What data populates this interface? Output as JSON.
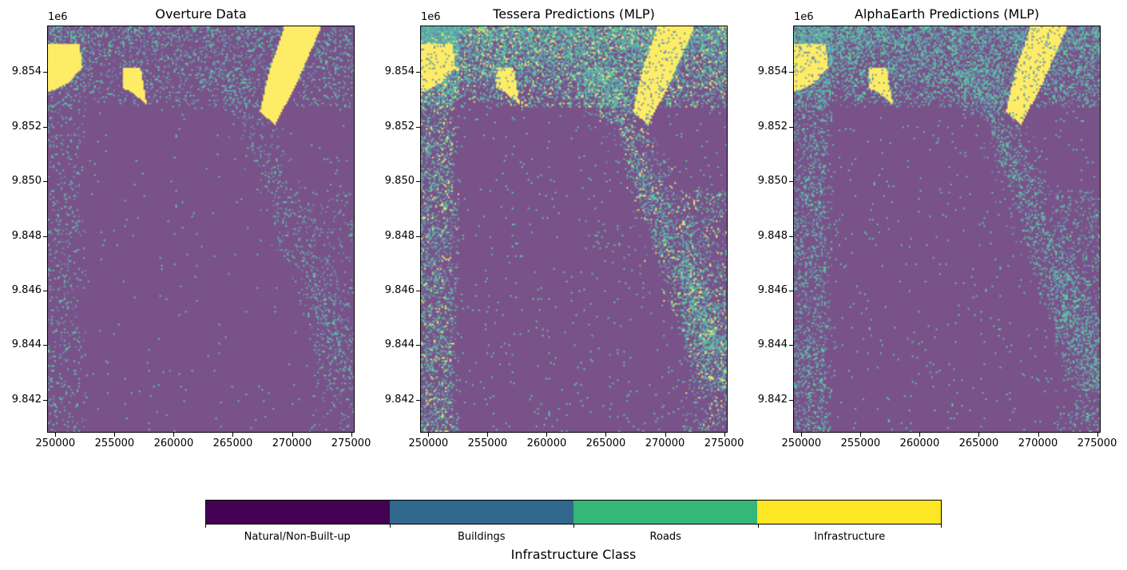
{
  "figure": {
    "offset_label": "1e6",
    "panels": [
      {
        "title": "Overture Data",
        "pattern": "overture"
      },
      {
        "title": "Tessera Predictions (MLP)",
        "pattern": "tessera"
      },
      {
        "title": "AlphaEarth Predictions (MLP)",
        "pattern": "alphaearth"
      }
    ],
    "y_ticks": [
      "9.842",
      "9.844",
      "9.846",
      "9.848",
      "9.850",
      "9.852",
      "9.854"
    ],
    "x_ticks": [
      "250000",
      "255000",
      "260000",
      "265000",
      "270000",
      "275000"
    ],
    "x_range": [
      249300,
      275300
    ],
    "y_range": [
      9840800,
      9855700
    ]
  },
  "colorbar": {
    "title": "Infrastructure Class",
    "classes": [
      {
        "label": "Natural/Non-Built-up",
        "color": "#440154"
      },
      {
        "label": "Buildings",
        "color": "#31688e"
      },
      {
        "label": "Roads",
        "color": "#35b779"
      },
      {
        "label": "Infrastructure",
        "color": "#fde725"
      }
    ]
  }
}
